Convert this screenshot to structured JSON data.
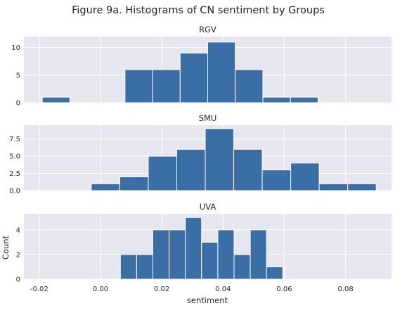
{
  "chart_data": {
    "type": "bar",
    "title": "Figure 9a. Histograms of CN sentiment by Groups",
    "xlabel": "sentiment",
    "ylabel": "Count",
    "xlim": [
      -0.025,
      0.095
    ],
    "x_ticks": [
      -0.02,
      0.0,
      0.02,
      0.04,
      0.06,
      0.08
    ],
    "x_tick_labels": [
      "-0.02",
      "0.00",
      "0.02",
      "0.04",
      "0.06",
      "0.08"
    ],
    "grid": true,
    "bar_color": "#3a6ea5",
    "panel_color": "#e6e6ee",
    "panels": [
      {
        "title": "RGV",
        "ylim": [
          0,
          12
        ],
        "y_ticks": [
          0,
          5,
          10
        ],
        "y_tick_labels": [
          "0",
          "5",
          "10"
        ],
        "bins": [
          {
            "x0": -0.019,
            "x1": -0.01,
            "count": 1
          },
          {
            "x0": 0.008,
            "x1": 0.017,
            "count": 6
          },
          {
            "x0": 0.017,
            "x1": 0.026,
            "count": 6
          },
          {
            "x0": 0.026,
            "x1": 0.035,
            "count": 9
          },
          {
            "x0": 0.035,
            "x1": 0.044,
            "count": 11
          },
          {
            "x0": 0.044,
            "x1": 0.053,
            "count": 6
          },
          {
            "x0": 0.053,
            "x1": 0.062,
            "count": 1
          },
          {
            "x0": 0.062,
            "x1": 0.071,
            "count": 1
          }
        ]
      },
      {
        "title": "SMU",
        "ylim": [
          0,
          9.5
        ],
        "y_ticks": [
          0,
          2.5,
          5,
          7.5
        ],
        "y_tick_labels": [
          "0.0",
          "2.5",
          "5.0",
          "7.5"
        ],
        "bins": [
          {
            "x0": -0.003,
            "x1": 0.0063,
            "count": 1
          },
          {
            "x0": 0.0063,
            "x1": 0.0156,
            "count": 2
          },
          {
            "x0": 0.0156,
            "x1": 0.0249,
            "count": 5
          },
          {
            "x0": 0.0249,
            "x1": 0.0342,
            "count": 6
          },
          {
            "x0": 0.0342,
            "x1": 0.0435,
            "count": 9
          },
          {
            "x0": 0.0435,
            "x1": 0.0528,
            "count": 6
          },
          {
            "x0": 0.0528,
            "x1": 0.0621,
            "count": 3
          },
          {
            "x0": 0.0621,
            "x1": 0.0714,
            "count": 4
          },
          {
            "x0": 0.0714,
            "x1": 0.0807,
            "count": 1
          },
          {
            "x0": 0.0807,
            "x1": 0.09,
            "count": 1
          }
        ]
      },
      {
        "title": "UVA",
        "ylim": [
          0,
          5.3
        ],
        "y_ticks": [
          0,
          2,
          4
        ],
        "y_tick_labels": [
          "0",
          "2",
          "4"
        ],
        "bins": [
          {
            "x0": 0.0065,
            "x1": 0.0118,
            "count": 2
          },
          {
            "x0": 0.0118,
            "x1": 0.0171,
            "count": 2
          },
          {
            "x0": 0.0171,
            "x1": 0.0224,
            "count": 4
          },
          {
            "x0": 0.0224,
            "x1": 0.0277,
            "count": 4
          },
          {
            "x0": 0.0277,
            "x1": 0.033,
            "count": 5
          },
          {
            "x0": 0.033,
            "x1": 0.0383,
            "count": 3
          },
          {
            "x0": 0.0383,
            "x1": 0.0436,
            "count": 4
          },
          {
            "x0": 0.0436,
            "x1": 0.0489,
            "count": 2
          },
          {
            "x0": 0.0489,
            "x1": 0.0542,
            "count": 4
          },
          {
            "x0": 0.0542,
            "x1": 0.0595,
            "count": 1
          }
        ]
      }
    ]
  }
}
